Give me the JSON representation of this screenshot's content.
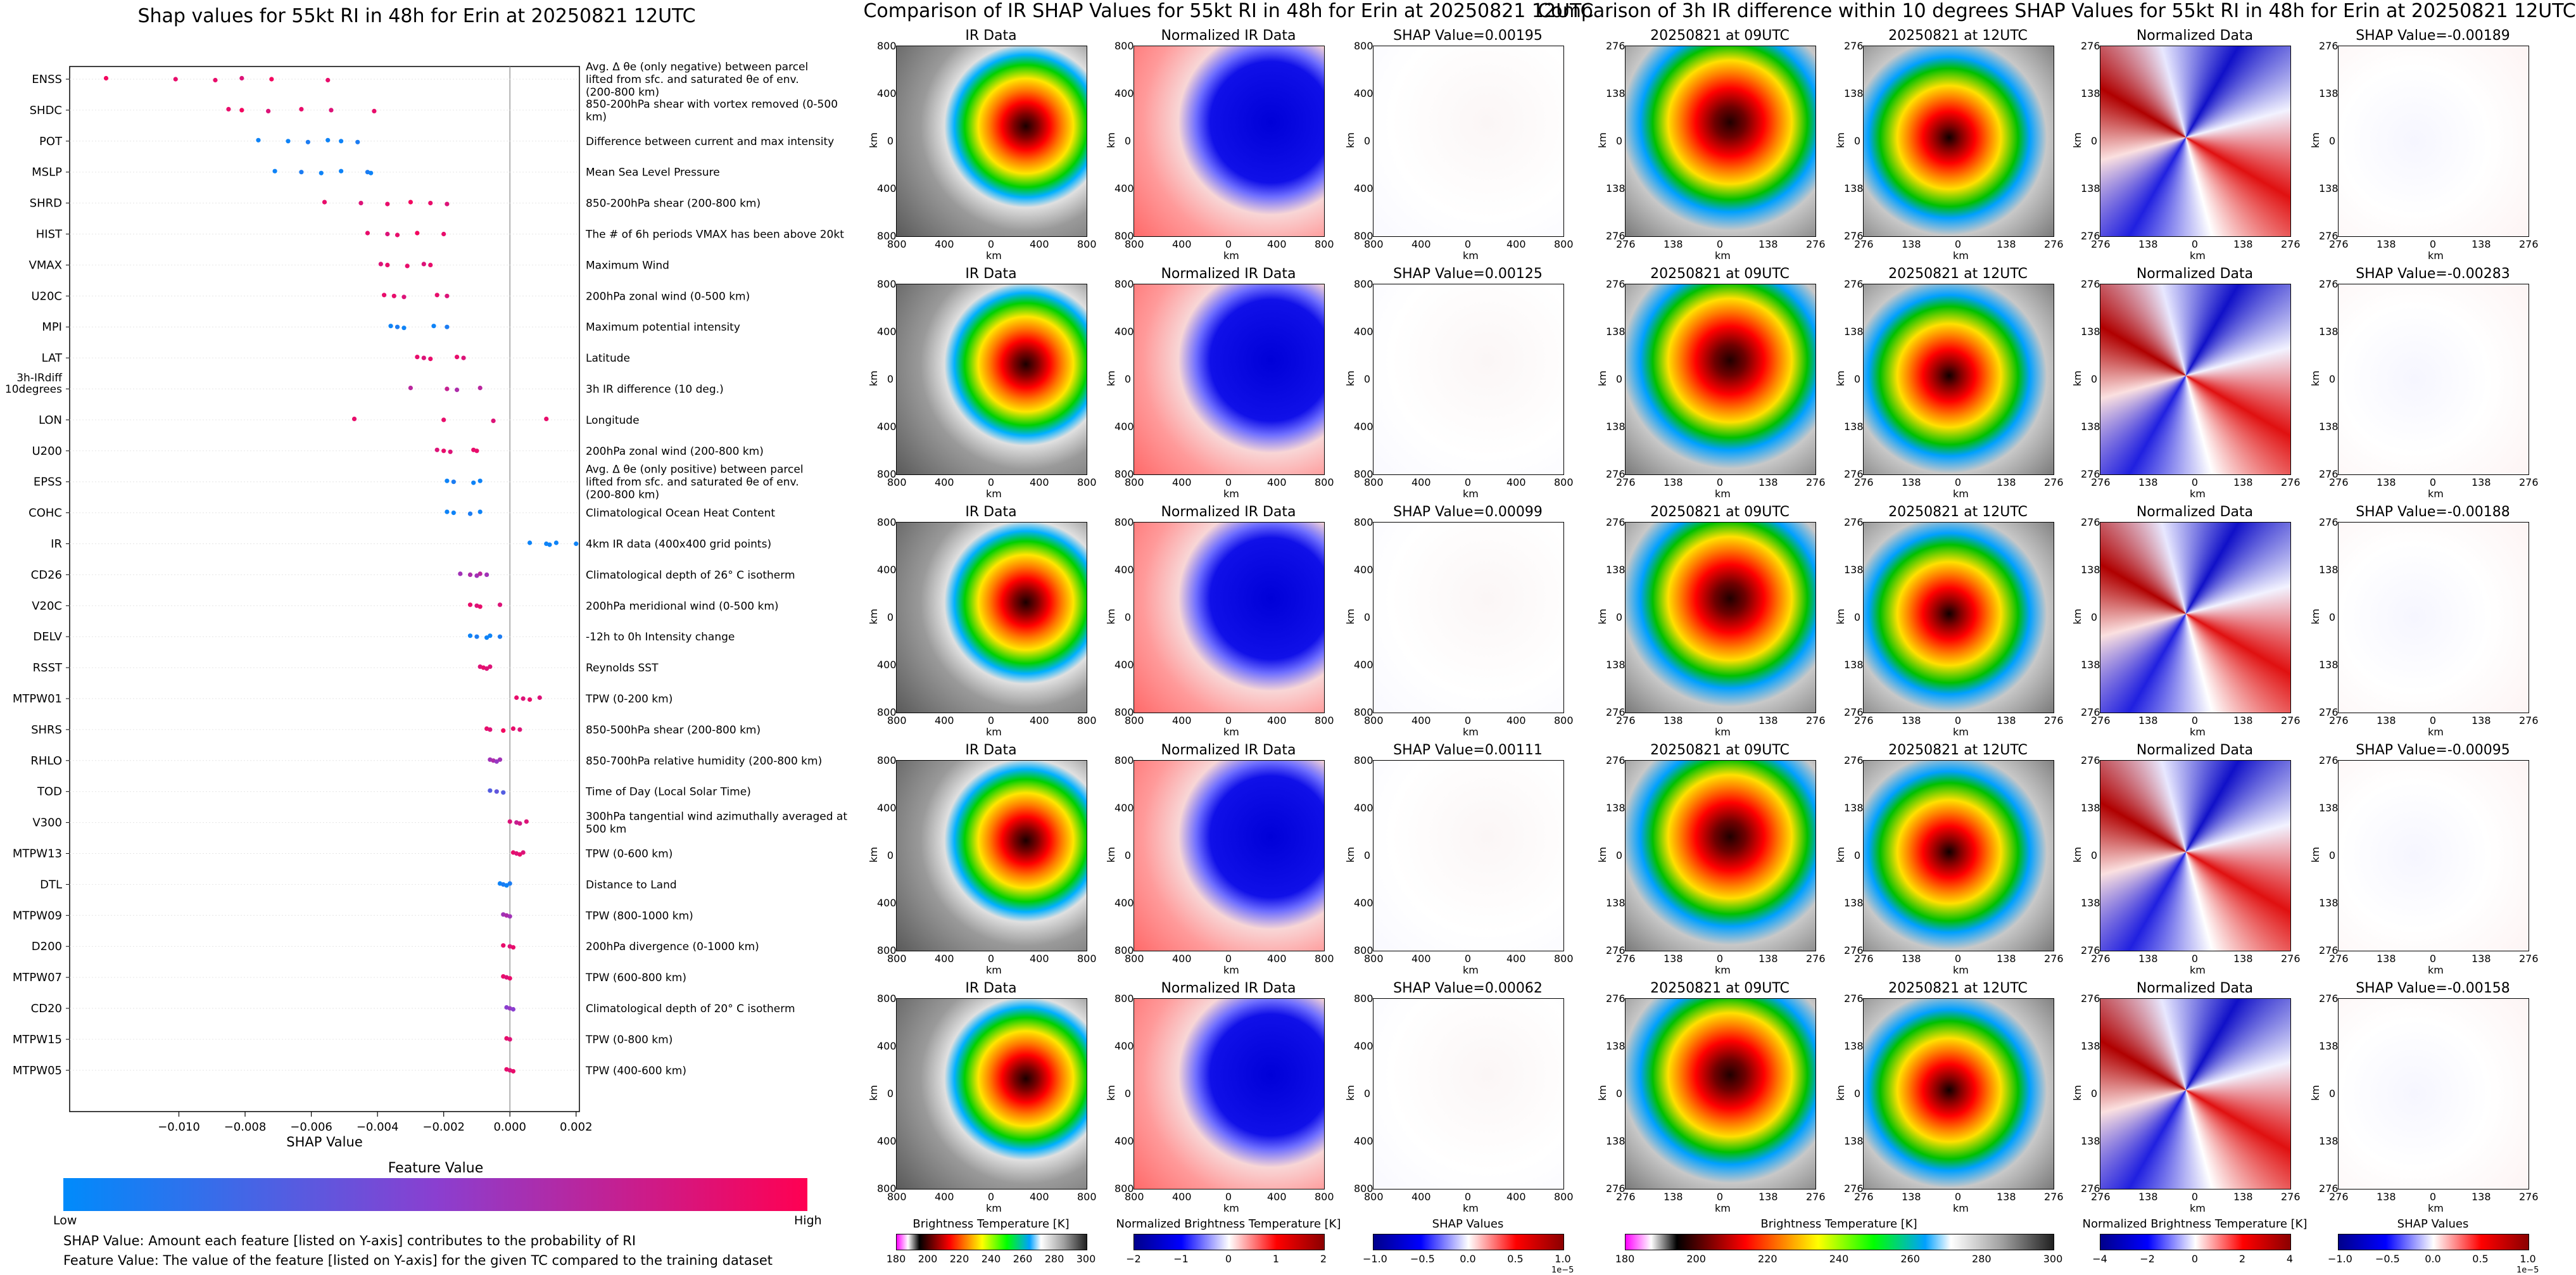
{
  "titles": {
    "shap_beeswarm": "Shap values for 55kt RI in 48h for Erin at 20250821 12UTC",
    "ir_comparison": "Comparison of IR SHAP Values for 55kt RI in 48h for Erin at 20250821 12UTC",
    "diff_comparison": "Comparison of 3h IR difference within 10 degrees SHAP Values for 55kt RI in 48h for Erin at 20250821 12UTC"
  },
  "feature_value_bar": {
    "title": "Feature Value",
    "low_label": "Low",
    "high_label": "High",
    "colors": [
      "#008bfb",
      "#8a3fd0",
      "#ff0052"
    ]
  },
  "captions": {
    "shap_value": "SHAP Value: Amount each feature [listed on Y-axis] contributes to the probability of RI",
    "feature_value": "Feature Value: The value of the feature [listed on Y-axis] for the given TC compared to the training dataset"
  },
  "chart_data": [
    {
      "type": "scatter",
      "title": "Shap values for 55kt RI in 48h for Erin at 20250821 12UTC",
      "xlabel": "SHAP Value",
      "ylabel": "",
      "xlim": [
        -0.0133,
        0.0021
      ],
      "xticks": [
        -0.01,
        -0.008,
        -0.006,
        -0.004,
        -0.002,
        0.0,
        0.002
      ],
      "xtick_labels": [
        "−0.010",
        "−0.008",
        "−0.006",
        "−0.004",
        "−0.002",
        "0.000",
        "0.002"
      ],
      "grid": false,
      "features": [
        {
          "name": "ENSS",
          "description": "Avg. Δ θe (only negative) between parcel lifted from sfc. and saturated θe of env. (200-800 km)",
          "shap": [
            -0.0122,
            -0.0101,
            -0.0089,
            -0.0081,
            -0.0072,
            -0.0055
          ],
          "fv": [
            0.95,
            0.9,
            0.9,
            0.85,
            0.95,
            0.9
          ]
        },
        {
          "name": "SHDC",
          "description": "850-200hPa shear with vortex removed (0-500 km)",
          "shap": [
            -0.0085,
            -0.0081,
            -0.0073,
            -0.0063,
            -0.0054,
            -0.0041
          ],
          "fv": [
            0.9,
            0.95,
            0.85,
            0.9,
            0.85,
            0.9
          ]
        },
        {
          "name": "POT",
          "description": "Difference between current and max intensity",
          "shap": [
            -0.0076,
            -0.0067,
            -0.0061,
            -0.0055,
            -0.0051,
            -0.0046
          ],
          "fv": [
            0.05,
            0.05,
            0.1,
            0.05,
            0.05,
            0.1
          ]
        },
        {
          "name": "MSLP",
          "description": "Mean Sea Level Pressure",
          "shap": [
            -0.0071,
            -0.0063,
            -0.0057,
            -0.0051,
            -0.0043,
            -0.0042
          ],
          "fv": [
            0.05,
            0.1,
            0.05,
            0.05,
            0.1,
            0.05
          ]
        },
        {
          "name": "SHRD",
          "description": "850-200hPa shear (200-800 km)",
          "shap": [
            -0.0056,
            -0.0045,
            -0.0037,
            -0.003,
            -0.0024,
            -0.0019
          ],
          "fv": [
            0.9,
            0.85,
            0.9,
            0.95,
            0.9,
            0.85
          ]
        },
        {
          "name": "HIST",
          "description": "The # of 6h periods VMAX has been above 20kt",
          "shap": [
            -0.0043,
            -0.0037,
            -0.0034,
            -0.0028,
            -0.002
          ],
          "fv": [
            0.9,
            0.85,
            0.9,
            0.95,
            0.9
          ]
        },
        {
          "name": "VMAX",
          "description": "Maximum Wind",
          "shap": [
            -0.0039,
            -0.0037,
            -0.0031,
            -0.0026,
            -0.0024
          ],
          "fv": [
            0.85,
            0.9,
            0.9,
            0.85,
            0.9
          ]
        },
        {
          "name": "U20C",
          "description": "200hPa zonal wind (0-500 km)",
          "shap": [
            -0.0038,
            -0.0035,
            -0.0032,
            -0.0022,
            -0.0019
          ],
          "fv": [
            0.9,
            0.9,
            0.85,
            0.9,
            0.85
          ]
        },
        {
          "name": "MPI",
          "description": "Maximum potential intensity",
          "shap": [
            -0.0036,
            -0.0034,
            -0.0032,
            -0.0023,
            -0.0019
          ],
          "fv": [
            0.05,
            0.1,
            0.05,
            0.05,
            0.1
          ]
        },
        {
          "name": "LAT",
          "description": "Latitude",
          "shap": [
            -0.0028,
            -0.0026,
            -0.0024,
            -0.0016,
            -0.0014
          ],
          "fv": [
            0.9,
            0.85,
            0.9,
            0.9,
            0.85
          ]
        },
        {
          "name": "3h-IRdiff 10degrees",
          "description": "3h IR difference (10 deg.)",
          "shap": [
            -0.003,
            -0.0019,
            -0.0016,
            -0.0009
          ],
          "fv": [
            0.7,
            0.75,
            0.65,
            0.7
          ]
        },
        {
          "name": "LON",
          "description": "Longitude",
          "shap": [
            -0.0047,
            -0.002,
            -0.0005,
            0.0011
          ],
          "fv": [
            0.9,
            0.9,
            0.85,
            0.9
          ]
        },
        {
          "name": "U200",
          "description": "200hPa zonal wind (200-800 km)",
          "shap": [
            -0.0022,
            -0.002,
            -0.0018,
            -0.0011,
            -0.001
          ],
          "fv": [
            0.85,
            0.9,
            0.85,
            0.9,
            0.9
          ]
        },
        {
          "name": "EPSS",
          "description": "Avg. Δ θe (only positive) between parcel lifted from sfc. and saturated θe of env. (200-800 km)",
          "shap": [
            -0.0019,
            -0.0017,
            -0.0011,
            -0.0009
          ],
          "fv": [
            0.05,
            0.1,
            0.05,
            0.05
          ]
        },
        {
          "name": "COHC",
          "description": "Climatological Ocean Heat Content",
          "shap": [
            -0.0019,
            -0.0017,
            -0.0012,
            -0.0009
          ],
          "fv": [
            0.05,
            0.05,
            0.1,
            0.05
          ]
        },
        {
          "name": "IR",
          "description": "4km IR data (400x400 grid points)",
          "shap": [
            0.0006,
            0.0011,
            0.0012,
            0.0014,
            0.002
          ],
          "fv": [
            0.05,
            0.05,
            0.05,
            0.05,
            0.05
          ]
        },
        {
          "name": "CD26",
          "description": "Climatological depth of 26° C isotherm",
          "shap": [
            -0.0015,
            -0.0012,
            -0.001,
            -0.0009,
            -0.0007
          ],
          "fv": [
            0.6,
            0.65,
            0.6,
            0.7,
            0.6
          ]
        },
        {
          "name": "V20C",
          "description": "200hPa meridional wind (0-500 km)",
          "shap": [
            -0.0012,
            -0.001,
            -0.0009,
            -0.0003
          ],
          "fv": [
            0.9,
            0.85,
            0.9,
            0.85
          ]
        },
        {
          "name": "DELV",
          "description": "-12h to 0h Intensity change",
          "shap": [
            -0.0012,
            -0.001,
            -0.0007,
            -0.0006,
            -0.0003
          ],
          "fv": [
            0.05,
            0.1,
            0.05,
            0.05,
            0.1
          ]
        },
        {
          "name": "RSST",
          "description": "Reynolds SST",
          "shap": [
            -0.0009,
            -0.0008,
            -0.0007,
            -0.0006
          ],
          "fv": [
            0.85,
            0.9,
            0.85,
            0.85
          ]
        },
        {
          "name": "MTPW01",
          "description": "TPW (0-200 km)",
          "shap": [
            0.0002,
            0.0004,
            0.0006,
            0.0009
          ],
          "fv": [
            0.9,
            0.85,
            0.9,
            0.85
          ]
        },
        {
          "name": "SHRS",
          "description": "850-500hPa shear (200-800 km)",
          "shap": [
            -0.0007,
            -0.0006,
            -0.0002,
            0.0001,
            0.0003
          ],
          "fv": [
            0.9,
            0.85,
            0.95,
            0.9,
            0.85
          ]
        },
        {
          "name": "RHLO",
          "description": "850-700hPa relative humidity (200-800 km)",
          "shap": [
            -0.0006,
            -0.0005,
            -0.0004,
            -0.0003
          ],
          "fv": [
            0.6,
            0.65,
            0.55,
            0.6
          ]
        },
        {
          "name": "TOD",
          "description": "Time of Day (Local Solar Time)",
          "shap": [
            -0.0006,
            -0.0004,
            -0.0002
          ],
          "fv": [
            0.3,
            0.35,
            0.3
          ]
        },
        {
          "name": "V300",
          "description": "300hPa tangential wind azimuthally averaged at 500 km",
          "shap": [
            0.0,
            0.0002,
            0.0003,
            0.0005
          ],
          "fv": [
            0.85,
            0.75,
            0.8,
            0.85
          ]
        },
        {
          "name": "MTPW13",
          "description": "TPW (0-600 km)",
          "shap": [
            0.0001,
            0.0002,
            0.0003,
            0.0004
          ],
          "fv": [
            0.9,
            0.85,
            0.9,
            0.85
          ]
        },
        {
          "name": "DTL",
          "description": "Distance to Land",
          "shap": [
            -0.0003,
            -0.0002,
            -0.0001,
            0.0
          ],
          "fv": [
            0.05,
            0.1,
            0.05,
            0.1
          ]
        },
        {
          "name": "MTPW09",
          "description": "TPW (800-1000 km)",
          "shap": [
            -0.0002,
            -0.0001,
            0.0
          ],
          "fv": [
            0.6,
            0.65,
            0.6
          ]
        },
        {
          "name": "D200",
          "description": "200hPa divergence (0-1000 km)",
          "shap": [
            -0.0002,
            0.0,
            0.0001
          ],
          "fv": [
            0.9,
            0.85,
            0.9
          ]
        },
        {
          "name": "MTPW07",
          "description": "TPW (600-800 km)",
          "shap": [
            -0.0002,
            -0.0001,
            0.0
          ],
          "fv": [
            0.9,
            0.85,
            0.9
          ]
        },
        {
          "name": "CD20",
          "description": "Climatological depth of 20° C isotherm",
          "shap": [
            -0.0001,
            0.0,
            0.0001
          ],
          "fv": [
            0.5,
            0.55,
            0.5
          ]
        },
        {
          "name": "MTPW15",
          "description": "TPW (0-800 km)",
          "shap": [
            -0.0001,
            0.0
          ],
          "fv": [
            0.9,
            0.85
          ]
        },
        {
          "name": "MTPW05",
          "description": "TPW (400-600 km)",
          "shap": [
            -0.0001,
            0.0,
            0.0001
          ],
          "fv": [
            0.9,
            0.85,
            0.9
          ]
        }
      ]
    },
    {
      "type": "heatmap",
      "section": "IR SHAP comparison",
      "columns": [
        "IR Data",
        "Normalized IR Data",
        "SHAP"
      ],
      "shap_title_prefix": "SHAP Value=",
      "row_shap_values": [
        "0.00195",
        "0.00125",
        "0.00099",
        "0.00111",
        "0.00062"
      ],
      "axis_ticks": [
        "800",
        "400",
        "0",
        "400",
        "800"
      ],
      "axis_unit": "km",
      "colorbars": [
        {
          "label": "Brightness Temperature [K]",
          "ticks": [
            "180",
            "200",
            "220",
            "240",
            "260",
            "280",
            "300"
          ]
        },
        {
          "label": "Normalized Brightness Temperature [K]",
          "ticks": [
            "−2",
            "−1",
            "0",
            "1",
            "2"
          ]
        },
        {
          "label": "SHAP Values",
          "ticks": [
            "−1.0",
            "−0.5",
            "0.0",
            "0.5",
            "1.0"
          ],
          "multiplier": "1e−5"
        }
      ]
    },
    {
      "type": "heatmap",
      "section": "3h IR difference SHAP comparison",
      "columns": [
        "20250821 at 09UTC",
        "20250821 at 12UTC",
        "Normalized Data",
        "SHAP"
      ],
      "shap_title_prefix": "SHAP Value=",
      "row_shap_values": [
        "-0.00189",
        "-0.00283",
        "-0.00188",
        "-0.00095",
        "-0.00158"
      ],
      "axis_ticks": [
        "276",
        "138",
        "0",
        "138",
        "276"
      ],
      "axis_unit": "km",
      "colorbars": [
        {
          "label": "Brightness Temperature [K]",
          "ticks": [
            "180",
            "200",
            "220",
            "240",
            "260",
            "280",
            "300"
          ]
        },
        {
          "label": "Normalized Brightness Temperature [K]",
          "ticks": [
            "−4",
            "−2",
            "0",
            "2",
            "4"
          ]
        },
        {
          "label": "SHAP Values",
          "ticks": [
            "−1.0",
            "−0.5",
            "0.0",
            "0.5",
            "1.0"
          ],
          "multiplier": "1e−5"
        }
      ]
    }
  ]
}
